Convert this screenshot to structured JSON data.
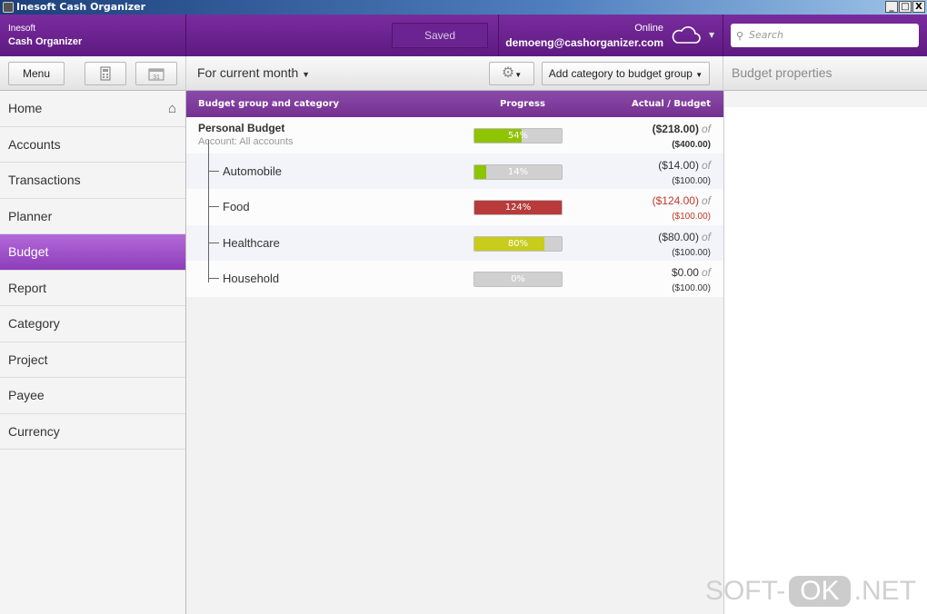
{
  "window": {
    "title": "Inesoft Cash Organizer",
    "controls": [
      "_",
      "□",
      "X"
    ]
  },
  "header": {
    "brand_line1": "Inesoft",
    "brand_line2": "Cash Organizer",
    "saved": "Saved",
    "status": "Online",
    "account": "demoeng@cashorganizer.com",
    "search_placeholder": "Search"
  },
  "toolbar": {
    "menu": "Menu",
    "period": "For current month",
    "add_category": "Add category to budget group",
    "panel_title": "Budget properties"
  },
  "sidebar": {
    "items": [
      {
        "label": "Home"
      },
      {
        "label": "Accounts"
      },
      {
        "label": "Transactions"
      },
      {
        "label": "Planner"
      },
      {
        "label": "Budget",
        "active": true
      },
      {
        "label": "Report"
      },
      {
        "label": "Category"
      },
      {
        "label": "Project"
      },
      {
        "label": "Payee"
      },
      {
        "label": "Currency"
      }
    ]
  },
  "table": {
    "columns": [
      "Budget group and category",
      "Progress",
      "Actual / Budget"
    ],
    "group": {
      "name": "Personal Budget",
      "account": "Account: All accounts",
      "progress": 54,
      "progress_label": "54%",
      "actual": "($218.00)",
      "of": "of",
      "budget": "($400.00)",
      "color": "#8fc400"
    },
    "rows": [
      {
        "name": "Automobile",
        "progress": 14,
        "progress_label": "14%",
        "actual": "($14.00)",
        "of": "of",
        "budget": "($100.00)",
        "color": "#8fc400",
        "over": false
      },
      {
        "name": "Food",
        "progress": 124,
        "progress_label": "124%",
        "actual": "($124.00)",
        "of": "of",
        "budget": "($100.00)",
        "color": "#b83a3a",
        "over": true
      },
      {
        "name": "Healthcare",
        "progress": 80,
        "progress_label": "80%",
        "actual": "($80.00)",
        "of": "of",
        "budget": "($100.00)",
        "color": "#c8cc1a",
        "over": false
      },
      {
        "name": "Household",
        "progress": 0,
        "progress_label": "0%",
        "actual": "$0.00",
        "of": "of",
        "budget": "($100.00)",
        "color": "#8fc400",
        "over": false
      }
    ]
  },
  "watermark": {
    "part1": "SOFT-",
    "part2": "OK",
    "part3": ".NET"
  },
  "colors": {
    "accent": "#6b2290",
    "active": "#9d4dc8",
    "over": "#c0392b"
  }
}
